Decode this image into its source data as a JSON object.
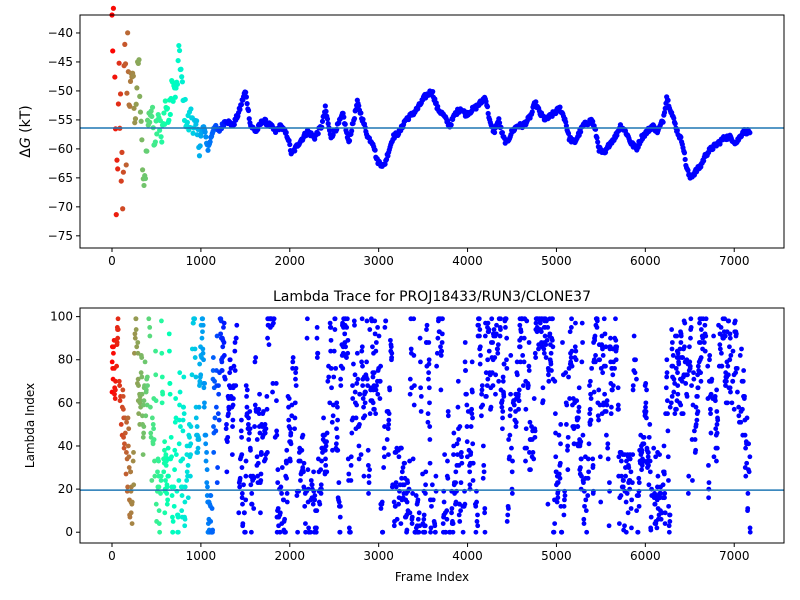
{
  "figure": {
    "background": "#ffffff"
  },
  "chart_data": [
    {
      "type": "scatter",
      "title": "",
      "xlabel": "",
      "ylabel": "ΔG (kT)",
      "ylabel_parts": {
        "symbol": "Δ",
        "var": "G",
        "unit": " (kT)"
      },
      "xlim": [
        -360,
        7560
      ],
      "ylim": [
        -77.1,
        -36.9
      ],
      "xticks": [
        0,
        1000,
        2000,
        3000,
        4000,
        5000,
        6000,
        7000
      ],
      "yticks": [
        -75,
        -70,
        -65,
        -60,
        -55,
        -50,
        -45,
        -40
      ],
      "xtick_labels": [
        "0",
        "1000",
        "2000",
        "3000",
        "4000",
        "5000",
        "6000",
        "7000"
      ],
      "ytick_labels": [
        "−75",
        "−70",
        "−65",
        "−60",
        "−55",
        "−50",
        "−45",
        "−40"
      ],
      "hline": {
        "y": -56.4,
        "color": "#1f77b4"
      },
      "colormap": "rainbow (reversed by frame index: red at start, violet at end)",
      "grid": false,
      "series": [
        {
          "trace_keypoints": [
            [
              0,
              -40
            ],
            [
              20,
              -38
            ],
            [
              40,
              -60
            ],
            [
              60,
              -72
            ],
            [
              80,
              -50
            ],
            [
              100,
              -58
            ],
            [
              120,
              -65
            ],
            [
              140,
              -48
            ],
            [
              160,
              -55
            ],
            [
              180,
              -42
            ],
            [
              200,
              -52
            ],
            [
              230,
              -46
            ],
            [
              260,
              -55
            ],
            [
              300,
              -44
            ],
            [
              330,
              -58
            ],
            [
              360,
              -68
            ],
            [
              400,
              -56
            ],
            [
              440,
              -53
            ],
            [
              480,
              -58
            ],
            [
              520,
              -53
            ],
            [
              560,
              -59
            ],
            [
              600,
              -52
            ],
            [
              640,
              -55
            ],
            [
              680,
              -49
            ],
            [
              720,
              -51
            ],
            [
              760,
              -43
            ],
            [
              800,
              -52
            ],
            [
              860,
              -56
            ],
            [
              900,
              -54
            ],
            [
              940,
              -57
            ],
            [
              980,
              -59
            ],
            [
              1030,
              -56
            ],
            [
              1080,
              -60
            ],
            [
              1150,
              -56
            ],
            [
              1200,
              -57
            ],
            [
              1280,
              -55
            ],
            [
              1360,
              -56
            ],
            [
              1420,
              -54
            ],
            [
              1500,
              -50
            ],
            [
              1560,
              -56
            ],
            [
              1620,
              -57
            ],
            [
              1700,
              -55
            ],
            [
              1780,
              -56
            ],
            [
              1840,
              -57
            ],
            [
              1900,
              -56
            ],
            [
              1980,
              -58
            ],
            [
              2020,
              -61
            ],
            [
              2100,
              -59
            ],
            [
              2200,
              -57
            ],
            [
              2280,
              -58
            ],
            [
              2360,
              -56
            ],
            [
              2400,
              -53
            ],
            [
              2460,
              -58
            ],
            [
              2540,
              -56
            ],
            [
              2600,
              -54
            ],
            [
              2660,
              -59
            ],
            [
              2720,
              -55
            ],
            [
              2760,
              -52
            ],
            [
              2820,
              -55
            ],
            [
              2880,
              -58
            ],
            [
              2940,
              -59
            ],
            [
              2980,
              -62
            ],
            [
              3060,
              -63
            ],
            [
              3100,
              -61
            ],
            [
              3160,
              -58
            ],
            [
              3240,
              -57
            ],
            [
              3300,
              -55
            ],
            [
              3380,
              -54
            ],
            [
              3440,
              -53
            ],
            [
              3520,
              -51
            ],
            [
              3600,
              -50
            ],
            [
              3660,
              -53
            ],
            [
              3720,
              -54
            ],
            [
              3800,
              -56
            ],
            [
              3860,
              -54
            ],
            [
              3920,
              -53
            ],
            [
              3980,
              -54
            ],
            [
              4080,
              -53
            ],
            [
              4150,
              -52
            ],
            [
              4200,
              -51
            ],
            [
              4260,
              -56
            ],
            [
              4300,
              -57
            ],
            [
              4350,
              -55
            ],
            [
              4400,
              -58
            ],
            [
              4440,
              -59
            ],
            [
              4500,
              -57
            ],
            [
              4560,
              -56
            ],
            [
              4620,
              -56
            ],
            [
              4680,
              -55
            ],
            [
              4720,
              -54
            ],
            [
              4760,
              -52
            ],
            [
              4820,
              -54
            ],
            [
              4880,
              -55
            ],
            [
              4960,
              -54
            ],
            [
              5040,
              -53
            ],
            [
              5100,
              -55
            ],
            [
              5140,
              -58
            ],
            [
              5200,
              -59
            ],
            [
              5300,
              -56
            ],
            [
              5400,
              -55
            ],
            [
              5440,
              -57
            ],
            [
              5480,
              -60
            ],
            [
              5540,
              -61
            ],
            [
              5600,
              -59
            ],
            [
              5660,
              -58
            ],
            [
              5720,
              -56
            ],
            [
              5780,
              -57
            ],
            [
              5840,
              -59
            ],
            [
              5900,
              -60
            ],
            [
              5960,
              -58
            ],
            [
              6020,
              -57
            ],
            [
              6080,
              -56
            ],
            [
              6140,
              -57
            ],
            [
              6200,
              -55
            ],
            [
              6240,
              -51
            ],
            [
              6300,
              -54
            ],
            [
              6360,
              -57
            ],
            [
              6420,
              -59
            ],
            [
              6460,
              -63
            ],
            [
              6500,
              -65
            ],
            [
              6560,
              -64
            ],
            [
              6620,
              -63
            ],
            [
              6680,
              -61
            ],
            [
              6740,
              -60
            ],
            [
              6820,
              -59
            ],
            [
              6900,
              -58
            ],
            [
              6960,
              -58
            ],
            [
              7020,
              -59
            ],
            [
              7100,
              -57
            ],
            [
              7180,
              -57
            ]
          ]
        }
      ]
    },
    {
      "type": "scatter",
      "title": "Lambda Trace for PROJ18433/RUN3/CLONE37",
      "xlabel": "Frame Index",
      "ylabel": "Lambda Index",
      "xlim": [
        -360,
        7560
      ],
      "ylim": [
        -5,
        104
      ],
      "xticks": [
        0,
        1000,
        2000,
        3000,
        4000,
        5000,
        6000,
        7000
      ],
      "yticks": [
        0,
        20,
        40,
        60,
        80,
        100
      ],
      "xtick_labels": [
        "0",
        "1000",
        "2000",
        "3000",
        "4000",
        "5000",
        "6000",
        "7000"
      ],
      "ytick_labels": [
        "0",
        "20",
        "40",
        "60",
        "80",
        "100"
      ],
      "hline": {
        "y": 19.5,
        "color": "#1f77b4"
      },
      "colormap": "rainbow (reversed by frame index: red at start, violet at end)",
      "grid": false,
      "series": [
        {
          "distribution": "lambda values 0–99 visited across frames 0–7180; dense random walk",
          "high_band_segments": [
            [
              2900,
              3000
            ],
            [
              4200,
              4320
            ],
            [
              5500,
              5560
            ],
            [
              6280,
              6480
            ],
            [
              6900,
              7050
            ]
          ],
          "low_band_segments": [
            [
              3150,
              3300
            ],
            [
              5700,
              5850
            ],
            [
              6100,
              6200
            ]
          ]
        }
      ]
    }
  ]
}
